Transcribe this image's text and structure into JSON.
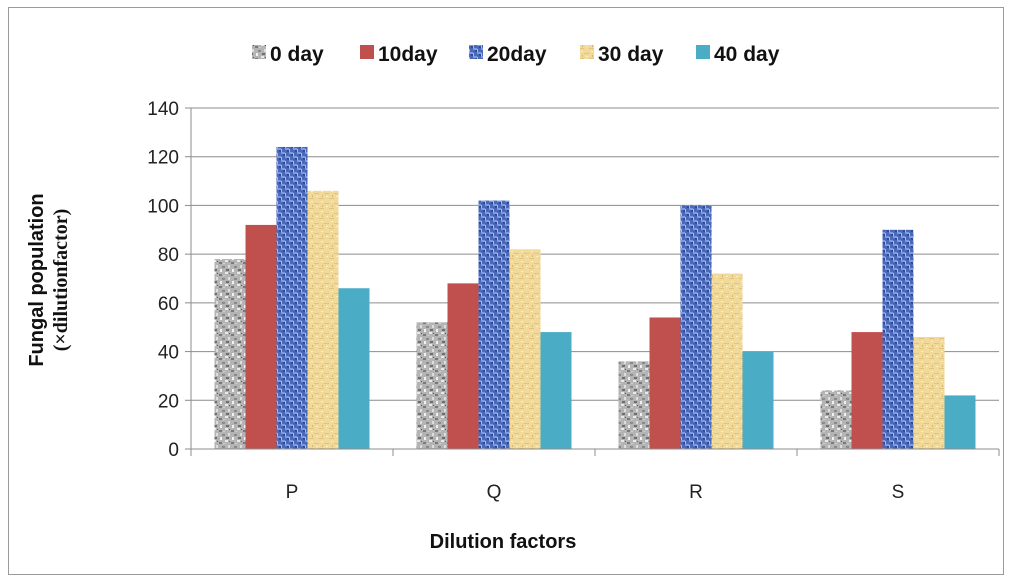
{
  "chart_data": {
    "type": "bar",
    "categories": [
      "P",
      "Q",
      "R",
      "S"
    ],
    "series": [
      {
        "name": "0 day",
        "values": [
          78,
          52,
          36,
          24
        ],
        "color": "#a8a8a8",
        "pattern": "gray-granite"
      },
      {
        "name": "10day",
        "values": [
          92,
          68,
          54,
          48
        ],
        "color": "#c0504d",
        "pattern": "solid"
      },
      {
        "name": "20day",
        "values": [
          124,
          102,
          100,
          90
        ],
        "color": "#4f6fc0",
        "pattern": "blue-weave"
      },
      {
        "name": "30 day",
        "values": [
          106,
          82,
          72,
          46
        ],
        "color": "#f2dca0",
        "pattern": "tan-texture"
      },
      {
        "name": "40 day",
        "values": [
          66,
          48,
          40,
          22
        ],
        "color": "#4bacc6",
        "pattern": "solid"
      }
    ],
    "xlabel": "Dilution factors",
    "ylabel_line1": "Fungal population",
    "ylabel_line2": "(×dilutionfactor)",
    "ylim": [
      0,
      140
    ],
    "yticks": [
      0,
      20,
      40,
      60,
      80,
      100,
      120,
      140
    ],
    "grid": true,
    "legend_position": "top"
  }
}
